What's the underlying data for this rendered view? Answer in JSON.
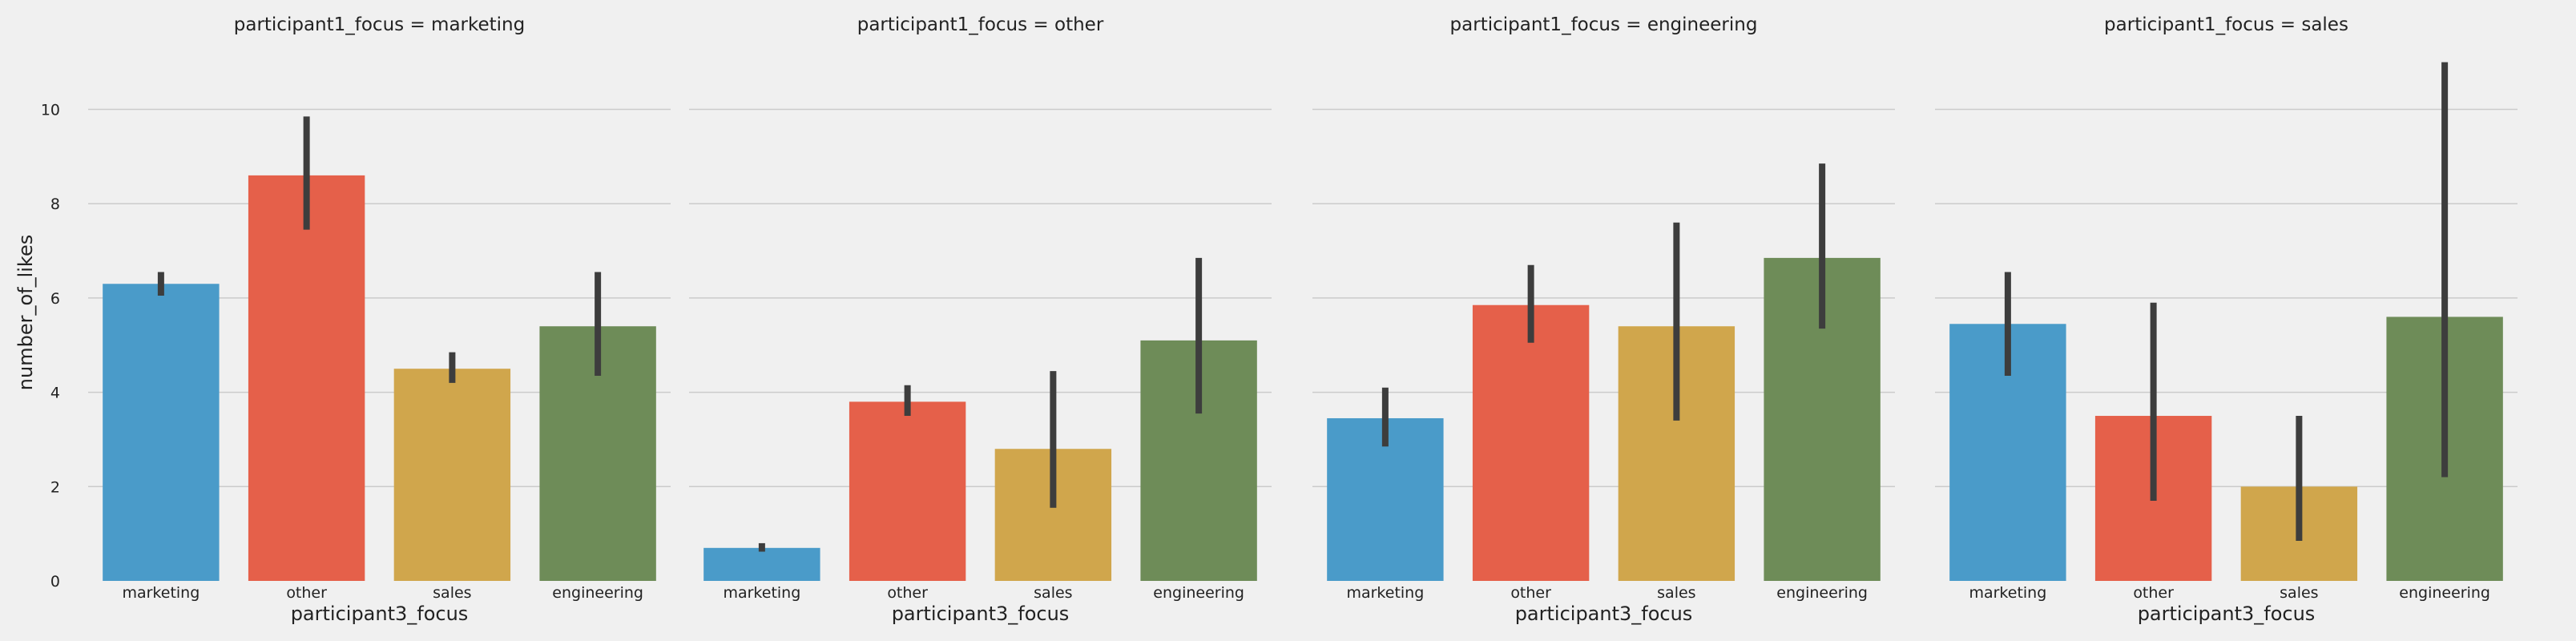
{
  "chart_data": {
    "type": "bar",
    "ylabel": "number_of_likes",
    "xlabel": "participant3_focus",
    "ylim": [
      0,
      11.3
    ],
    "yticks": [
      0,
      2,
      4,
      6,
      8,
      10
    ],
    "grid": true,
    "categories": [
      "marketing",
      "other",
      "sales",
      "engineering"
    ],
    "colors": {
      "marketing": "#4a9bc9",
      "other": "#e5604a",
      "sales": "#d0a64c",
      "engineering": "#6e8c58",
      "error_bar": "#3d3d3d",
      "background": "#f0f0f0",
      "grid": "#cbcbcb"
    },
    "panels": [
      {
        "title": "participant1_focus = marketing",
        "values": [
          6.3,
          8.6,
          4.5,
          5.4
        ],
        "ci_low": [
          6.05,
          7.45,
          4.2,
          4.35
        ],
        "ci_high": [
          6.55,
          9.85,
          4.85,
          6.55
        ]
      },
      {
        "title": "participant1_focus = other",
        "values": [
          0.7,
          3.8,
          2.8,
          5.1
        ],
        "ci_low": [
          0.62,
          3.5,
          1.55,
          3.55
        ],
        "ci_high": [
          0.8,
          4.15,
          4.45,
          6.85
        ]
      },
      {
        "title": "participant1_focus = engineering",
        "values": [
          3.45,
          5.85,
          5.4,
          6.85
        ],
        "ci_low": [
          2.85,
          5.05,
          3.4,
          5.35
        ],
        "ci_high": [
          4.1,
          6.7,
          7.6,
          8.85
        ]
      },
      {
        "title": "participant1_focus = sales",
        "values": [
          5.45,
          3.5,
          2.0,
          5.6
        ],
        "ci_low": [
          4.35,
          1.7,
          0.85,
          2.2
        ],
        "ci_high": [
          6.55,
          5.9,
          3.5,
          11.0
        ]
      }
    ]
  }
}
